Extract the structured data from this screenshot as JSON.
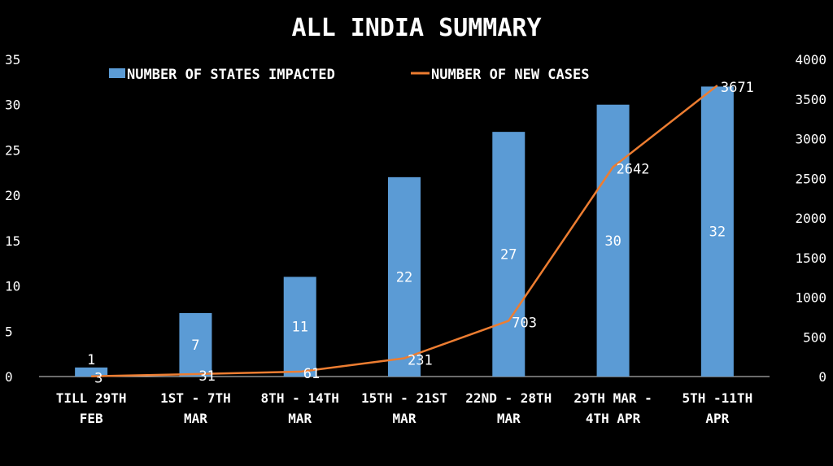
{
  "chart_data": {
    "type": "bar",
    "title": "ALL INDIA SUMMARY",
    "categories": [
      [
        "TILL 29TH",
        "FEB"
      ],
      [
        "1ST - 7TH",
        "MAR"
      ],
      [
        "8TH - 14TH",
        "MAR"
      ],
      [
        "15TH - 21ST",
        "MAR"
      ],
      [
        "22ND - 28TH",
        "MAR"
      ],
      [
        "29TH MAR -",
        "4TH APR"
      ],
      [
        "5TH -11TH",
        "APR"
      ]
    ],
    "series": [
      {
        "name": "NUMBER OF STATES IMPACTED",
        "type": "bar",
        "axis": "left",
        "color": "#5b9bd5",
        "values": [
          1,
          7,
          11,
          22,
          27,
          30,
          32
        ]
      },
      {
        "name": "NUMBER OF NEW CASES",
        "type": "line",
        "axis": "right",
        "color": "#ed7d31",
        "values": [
          3,
          31,
          61,
          231,
          703,
          2642,
          3671
        ]
      }
    ],
    "y_left": {
      "min": 0,
      "max": 35,
      "step": 5
    },
    "y_right": {
      "min": 0,
      "max": 4000,
      "step": 500
    },
    "legend_position": "top",
    "grid": false
  }
}
